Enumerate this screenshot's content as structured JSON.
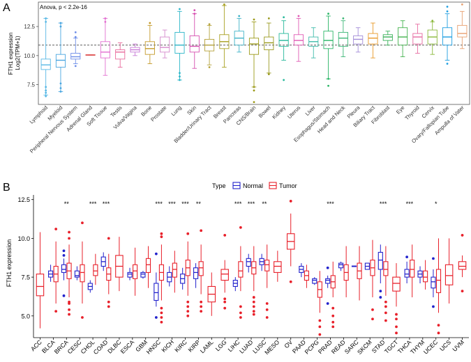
{
  "chart_data": [
    {
      "panel": "A",
      "type": "boxplot",
      "annotation": "Anova, p < 2.2e-16",
      "ylabel": "FTH1 expression\nLog2(TPM+1)",
      "ylabel_lines": [
        "FTH1 expression",
        "Log2(TPM+1)"
      ],
      "ylim": [
        5.8,
        14.6
      ],
      "yticks": [
        7.5,
        10.0,
        12.5
      ],
      "ytick_labels": [
        "7.5",
        "10.0",
        "12.5"
      ],
      "reference_line": 10.9,
      "categories": [
        "Lymphoid",
        "Myeloid",
        "Peripheral Nervous System",
        "Adrenal Gland",
        "Soft Tissue",
        "Testis",
        "Vulva/Vagina",
        "Bone",
        "Prostate",
        "Lung",
        "Skin",
        "Bladder/Urinary Tract",
        "Breast",
        "Pancreas",
        "CNS/Brain",
        "Bowel",
        "Kidney",
        "Uterus",
        "Liver",
        "Esophagus/Stomach",
        "Head and Neck",
        "Pleura",
        "Biliary Tract",
        "Fibroblast",
        "Eye",
        "Thyroid",
        "Cervix",
        "Ovary/Fallopian Tube",
        "Ampulla of Vater"
      ],
      "colors": [
        "#58b8e5",
        "#4aa6e0",
        "#6e8ee8",
        "#e05a5a",
        "#e26ed0",
        "#e86a9c",
        "#c77ad6",
        "#c49a2a",
        "#d58acc",
        "#2cb6c8",
        "#d64fb0",
        "#b5a23a",
        "#a8a020",
        "#3fb3c8",
        "#9c9a18",
        "#9a9a20",
        "#24b89a",
        "#e05ab4",
        "#3fbcaa",
        "#2ab566",
        "#3bb676",
        "#a38cd8",
        "#e89a2a",
        "#38b058",
        "#44b24e",
        "#e66aa0",
        "#8ab83a",
        "#1e9ee0",
        "#e8a070"
      ],
      "boxes": [
        {
          "q1": 8.8,
          "median": 9.2,
          "q3": 9.7,
          "lo": 6.6,
          "hi": 13.2
        },
        {
          "q1": 9.0,
          "median": 9.6,
          "q3": 10.1,
          "lo": 6.9,
          "hi": 12.8
        },
        {
          "q1": 9.7,
          "median": 9.9,
          "q3": 10.2,
          "lo": 9.3,
          "hi": 11.5
        },
        {
          "q1": 10.02,
          "median": 10.05,
          "q3": 10.08,
          "lo": 10.02,
          "hi": 10.08
        },
        {
          "q1": 9.8,
          "median": 10.3,
          "q3": 11.2,
          "lo": 8.3,
          "hi": 13.2
        },
        {
          "q1": 9.7,
          "median": 10.3,
          "q3": 10.5,
          "lo": 9.0,
          "hi": 11.1
        },
        {
          "q1": 10.3,
          "median": 10.5,
          "q3": 10.7,
          "lo": 10.0,
          "hi": 11.0
        },
        {
          "q1": 10.1,
          "median": 10.6,
          "q3": 11.2,
          "lo": 9.3,
          "hi": 12.6
        },
        {
          "q1": 10.3,
          "median": 10.7,
          "q3": 11.6,
          "lo": 9.8,
          "hi": 12.2
        },
        {
          "q1": 10.2,
          "median": 10.9,
          "q3": 12.0,
          "lo": 7.9,
          "hi": 13.8
        },
        {
          "q1": 10.3,
          "median": 10.8,
          "q3": 11.7,
          "lo": 8.9,
          "hi": 13.6
        },
        {
          "q1": 10.4,
          "median": 10.9,
          "q3": 11.4,
          "lo": 9.2,
          "hi": 12.6
        },
        {
          "q1": 10.6,
          "median": 11.2,
          "q3": 11.8,
          "lo": 9.0,
          "hi": 14.3
        },
        {
          "q1": 10.9,
          "median": 11.5,
          "q3": 12.1,
          "lo": 10.3,
          "hi": 13.2
        },
        {
          "q1": 10.1,
          "median": 11.0,
          "q3": 11.5,
          "lo": 7.3,
          "hi": 12.9
        },
        {
          "q1": 10.5,
          "median": 11.1,
          "q3": 11.6,
          "lo": 8.5,
          "hi": 12.8
        },
        {
          "q1": 10.8,
          "median": 11.3,
          "q3": 11.9,
          "lo": 9.6,
          "hi": 13.0
        },
        {
          "q1": 10.9,
          "median": 11.3,
          "q3": 11.8,
          "lo": 9.5,
          "hi": 13.2
        },
        {
          "q1": 10.8,
          "median": 11.2,
          "q3": 11.6,
          "lo": 9.8,
          "hi": 12.4
        },
        {
          "q1": 10.6,
          "median": 11.3,
          "q3": 12.1,
          "lo": 8.0,
          "hi": 13.4
        },
        {
          "q1": 10.8,
          "median": 11.5,
          "q3": 12.0,
          "lo": 9.9,
          "hi": 13.0
        },
        {
          "q1": 11.0,
          "median": 11.4,
          "q3": 11.7,
          "lo": 10.3,
          "hi": 12.4
        },
        {
          "q1": 11.0,
          "median": 11.5,
          "q3": 11.9,
          "lo": 9.8,
          "hi": 12.8
        },
        {
          "q1": 11.3,
          "median": 11.6,
          "q3": 11.8,
          "lo": 10.9,
          "hi": 12.1
        },
        {
          "q1": 10.9,
          "median": 11.6,
          "q3": 12.4,
          "lo": 9.9,
          "hi": 13.0
        },
        {
          "q1": 11.0,
          "median": 11.6,
          "q3": 11.9,
          "lo": 10.2,
          "hi": 12.7
        },
        {
          "q1": 11.0,
          "median": 11.6,
          "q3": 12.2,
          "lo": 10.1,
          "hi": 12.9
        },
        {
          "q1": 10.9,
          "median": 11.6,
          "q3": 12.4,
          "lo": 9.6,
          "hi": 13.6
        },
        {
          "q1": 11.6,
          "median": 11.9,
          "q3": 12.6,
          "lo": 10.6,
          "hi": 13.8
        }
      ],
      "outliers": [
        [
          6.5,
          6.8,
          7.0,
          7.3,
          13.2,
          12.9
        ],
        [
          6.9,
          7.2,
          7.6,
          12.8,
          12.5
        ],
        [
          9.1,
          11.6,
          12.0
        ],
        [],
        [
          12.9,
          13.2
        ],
        [],
        [],
        [
          12.8
        ],
        [],
        [
          7.9,
          8.2,
          8.5,
          14.0
        ],
        [
          13.6,
          13.9
        ],
        [
          9.0,
          12.7
        ],
        [
          14.4
        ],
        [
          13.4
        ],
        [
          6.0,
          7.0,
          7.3,
          13.1
        ],
        [
          8.4,
          13.2
        ],
        [
          7.9,
          13.3
        ],
        [
          13.4
        ],
        [],
        [
          7.4,
          8.0,
          13.6
        ],
        [
          13.2
        ],
        [],
        [],
        [],
        [],
        [],
        [
          13.0
        ],
        [
          9.3,
          13.8,
          14.2
        ],
        [
          14.4
        ]
      ]
    },
    {
      "panel": "B",
      "type": "boxplot-grouped",
      "ylabel": "FTH1 expression",
      "legend_title": "Type",
      "legend": [
        {
          "name": "Normal",
          "color": "#2222cc"
        },
        {
          "name": "Tumor",
          "color": "#e8202a"
        }
      ],
      "ylim": [
        3.6,
        12.8
      ],
      "yticks": [
        5.0,
        7.5,
        10.0,
        12.5
      ],
      "ytick_labels": [
        "5.0",
        "7.5",
        "10.0",
        "12.5"
      ],
      "categories": [
        "ACC",
        "BLCA",
        "BRCA",
        "CESC",
        "CHOL",
        "COAD",
        "DLBC",
        "ESCA",
        "GBM",
        "HNSC",
        "KICH",
        "KIRC",
        "KIRP",
        "LAML",
        "LGG",
        "LIHC",
        "LUAD",
        "LUSC",
        "MESO",
        "OV",
        "PAAD",
        "PCPG",
        "PRAD",
        "READ",
        "SARC",
        "SKCM",
        "STAD",
        "TGCT",
        "THCA",
        "THYM",
        "UCEC",
        "UCS",
        "UVM"
      ],
      "significance": [
        "",
        "",
        "**",
        "",
        "***",
        "***",
        "",
        "",
        "",
        "***",
        "***",
        "***",
        "**",
        "",
        "",
        "***",
        "***",
        "**",
        "",
        "",
        "",
        "",
        "***",
        "",
        "",
        "",
        "***",
        "",
        "***",
        "",
        "*",
        "",
        ""
      ],
      "normal": [
        null,
        {
          "q1": 7.5,
          "median": 7.7,
          "q3": 7.9,
          "lo": 7.2,
          "hi": 8.3
        },
        {
          "q1": 7.8,
          "median": 8.0,
          "q3": 8.3,
          "lo": 7.3,
          "hi": 8.7
        },
        {
          "q1": 7.5,
          "median": 7.6,
          "q3": 7.9,
          "lo": 7.3,
          "hi": 8.2
        },
        {
          "q1": 6.7,
          "median": 6.9,
          "q3": 7.1,
          "lo": 6.5,
          "hi": 7.3
        },
        {
          "q1": 8.2,
          "median": 8.5,
          "q3": 8.8,
          "lo": 7.9,
          "hi": 9.1
        },
        null,
        {
          "q1": 7.5,
          "median": 7.7,
          "q3": 7.8,
          "lo": 7.3,
          "hi": 8.1
        },
        {
          "q1": 7.5,
          "median": 7.7,
          "q3": 7.8,
          "lo": 7.4,
          "hi": 7.9
        },
        {
          "q1": 6.0,
          "median": 6.5,
          "q3": 7.1,
          "lo": 5.6,
          "hi": 7.8
        },
        {
          "q1": 7.2,
          "median": 7.5,
          "q3": 7.8,
          "lo": 6.9,
          "hi": 8.2
        },
        {
          "q1": 7.1,
          "median": 7.4,
          "q3": 7.7,
          "lo": 6.7,
          "hi": 8.1
        },
        {
          "q1": 7.4,
          "median": 7.8,
          "q3": 8.1,
          "lo": 6.8,
          "hi": 8.4
        },
        null,
        null,
        {
          "q1": 6.9,
          "median": 7.1,
          "q3": 7.3,
          "lo": 6.6,
          "hi": 7.5
        },
        {
          "q1": 8.2,
          "median": 8.5,
          "q3": 8.7,
          "lo": 7.8,
          "hi": 9.0
        },
        {
          "q1": 8.3,
          "median": 8.5,
          "q3": 8.7,
          "lo": 7.9,
          "hi": 9.0
        },
        null,
        null,
        {
          "q1": 7.8,
          "median": 8.0,
          "q3": 8.2,
          "lo": 7.5,
          "hi": 8.4
        },
        {
          "q1": 7.1,
          "median": 7.3,
          "q3": 7.4,
          "lo": 7.0,
          "hi": 7.5
        },
        {
          "q1": 7.1,
          "median": 7.3,
          "q3": 7.4,
          "lo": 6.8,
          "hi": 7.6
        },
        {
          "q1": 8.1,
          "median": 8.3,
          "q3": 8.4,
          "lo": 7.9,
          "hi": 8.5
        },
        {
          "q1": 8.18,
          "median": 8.2,
          "q3": 8.22,
          "lo": 8.18,
          "hi": 8.22
        },
        {
          "q1": 8.0,
          "median": 8.2,
          "q3": 8.4,
          "lo": 8.0,
          "hi": 8.4
        },
        {
          "q1": 8.0,
          "median": 8.6,
          "q3": 9.1,
          "lo": 7.1,
          "hi": 9.6
        },
        null,
        {
          "q1": 7.5,
          "median": 7.7,
          "q3": 8.0,
          "lo": 7.1,
          "hi": 8.5
        },
        {
          "q1": 7.5,
          "median": 7.7,
          "q3": 7.9,
          "lo": 7.1,
          "hi": 8.2
        },
        {
          "q1": 6.8,
          "median": 7.2,
          "q3": 7.5,
          "lo": 6.2,
          "hi": 8.0
        },
        null,
        null
      ],
      "tumor": [
        {
          "q1": 6.3,
          "median": 6.9,
          "q3": 7.7,
          "lo": 4.2,
          "hi": 10.4
        },
        {
          "q1": 7.2,
          "median": 7.7,
          "q3": 8.2,
          "lo": 5.8,
          "hi": 9.8
        },
        {
          "q1": 7.4,
          "median": 7.9,
          "q3": 8.4,
          "lo": 6.2,
          "hi": 9.6
        },
        {
          "q1": 7.2,
          "median": 7.8,
          "q3": 8.3,
          "lo": 5.8,
          "hi": 9.8
        },
        {
          "q1": 7.6,
          "median": 7.9,
          "q3": 8.3,
          "lo": 7.0,
          "hi": 9.0
        },
        {
          "q1": 7.3,
          "median": 7.7,
          "q3": 8.1,
          "lo": 6.4,
          "hi": 9.0
        },
        {
          "q1": 7.5,
          "median": 8.2,
          "q3": 8.9,
          "lo": 6.6,
          "hi": 10.1
        },
        {
          "q1": 7.4,
          "median": 7.9,
          "q3": 8.3,
          "lo": 6.3,
          "hi": 9.4
        },
        {
          "q1": 7.8,
          "median": 8.3,
          "q3": 8.7,
          "lo": 6.8,
          "hi": 9.5
        },
        {
          "q1": 7.3,
          "median": 7.8,
          "q3": 8.3,
          "lo": 6.0,
          "hi": 9.6
        },
        {
          "q1": 7.5,
          "median": 8.0,
          "q3": 8.4,
          "lo": 6.5,
          "hi": 9.2
        },
        {
          "q1": 7.6,
          "median": 8.1,
          "q3": 8.6,
          "lo": 6.3,
          "hi": 9.8
        },
        {
          "q1": 7.6,
          "median": 8.1,
          "q3": 8.5,
          "lo": 6.4,
          "hi": 9.6
        },
        {
          "q1": 5.9,
          "median": 6.4,
          "q3": 6.9,
          "lo": 5.0,
          "hi": 7.8
        },
        {
          "q1": 7.3,
          "median": 7.7,
          "q3": 8.0,
          "lo": 6.5,
          "hi": 8.6
        },
        {
          "q1": 7.5,
          "median": 7.9,
          "q3": 8.5,
          "lo": 6.6,
          "hi": 9.5
        },
        {
          "q1": 7.7,
          "median": 8.1,
          "q3": 8.5,
          "lo": 6.6,
          "hi": 9.5
        },
        {
          "q1": 7.9,
          "median": 8.3,
          "q3": 8.6,
          "lo": 6.8,
          "hi": 9.6
        },
        {
          "q1": 7.8,
          "median": 8.2,
          "q3": 8.5,
          "lo": 7.2,
          "hi": 9.2
        },
        {
          "q1": 9.3,
          "median": 9.8,
          "q3": 10.3,
          "lo": 8.2,
          "hi": 11.6
        },
        {
          "q1": 7.3,
          "median": 7.6,
          "q3": 7.9,
          "lo": 6.8,
          "hi": 8.3
        },
        {
          "q1": 6.2,
          "median": 6.7,
          "q3": 7.2,
          "lo": 5.2,
          "hi": 7.9
        },
        {
          "q1": 6.8,
          "median": 7.2,
          "q3": 7.6,
          "lo": 6.2,
          "hi": 8.5
        },
        {
          "q1": 7.3,
          "median": 7.8,
          "q3": 8.3,
          "lo": 6.2,
          "hi": 9.5
        },
        {
          "q1": 7.4,
          "median": 7.9,
          "q3": 8.4,
          "lo": 6.0,
          "hi": 9.5
        },
        {
          "q1": 7.6,
          "median": 8.1,
          "q3": 8.6,
          "lo": 6.2,
          "hi": 9.9
        },
        {
          "q1": 7.6,
          "median": 8.0,
          "q3": 8.5,
          "lo": 6.3,
          "hi": 9.5
        },
        {
          "q1": 6.6,
          "median": 7.1,
          "q3": 7.5,
          "lo": 5.6,
          "hi": 8.4
        },
        {
          "q1": 7.5,
          "median": 8.0,
          "q3": 8.6,
          "lo": 6.2,
          "hi": 9.6
        },
        {
          "q1": 7.2,
          "median": 7.5,
          "q3": 7.9,
          "lo": 6.7,
          "hi": 8.6
        },
        {
          "q1": 6.5,
          "median": 7.3,
          "q3": 8.0,
          "lo": 5.2,
          "hi": 10.0
        },
        {
          "q1": 7.0,
          "median": 7.6,
          "q3": 8.3,
          "lo": 5.8,
          "hi": 10.0
        },
        {
          "q1": 8.0,
          "median": 8.2,
          "q3": 8.5,
          "lo": 7.5,
          "hi": 8.9
        }
      ],
      "normal_outliers": [
        [],
        [],
        [
          6.3,
          8.9,
          9.2
        ],
        [],
        [],
        [],
        [],
        [],
        [],
        [
          4.9,
          9.0
        ],
        [],
        [],
        [],
        [],
        [],
        [],
        [],
        [],
        [],
        [],
        [],
        [],
        [
          5.8,
          8.1
        ],
        [],
        [],
        [],
        [
          6.2,
          6.6
        ],
        [],
        [
          8.8
        ],
        [],
        [
          5.6,
          8.7
        ],
        [],
        []
      ],
      "tumor_outliers": [
        [],
        [
          5.3,
          10.6
        ],
        [
          5.1,
          5.4,
          5.8,
          5.9,
          10.0,
          10.4
        ],
        [
          4.9,
          11.0
        ],
        [],
        [
          5.6,
          5.9,
          10.0
        ],
        [],
        [],
        [],
        [
          4.6,
          4.9,
          5.2,
          5.5,
          10.1,
          10.3
        ],
        [],
        [
          5.0,
          5.3,
          5.6,
          5.9,
          10.3
        ],
        [
          5.3,
          5.6,
          5.9,
          10.5
        ],
        [],
        [
          5.5,
          5.9,
          6.1,
          10.2
        ],
        [
          4.9,
          5.2,
          5.6,
          10.7
        ],
        [
          5.1,
          5.3,
          5.6,
          5.9,
          6.2
        ],
        [
          4.9,
          5.4,
          5.8
        ],
        [],
        [
          7.2,
          12.4
        ],
        [],
        [
          3.8,
          4.3,
          4.7
        ],
        [
          4.3,
          4.6,
          5.0,
          5.5
        ],
        [],
        [],
        [
          4.8,
          5.4
        ],
        [
          4.7,
          5.2,
          5.6,
          5.9
        ],
        [
          3.9,
          4.3,
          4.8,
          5.1
        ],
        [],
        [],
        [
          3.9,
          4.4
        ],
        [],
        [
          6.6,
          10.2
        ]
      ]
    }
  ]
}
